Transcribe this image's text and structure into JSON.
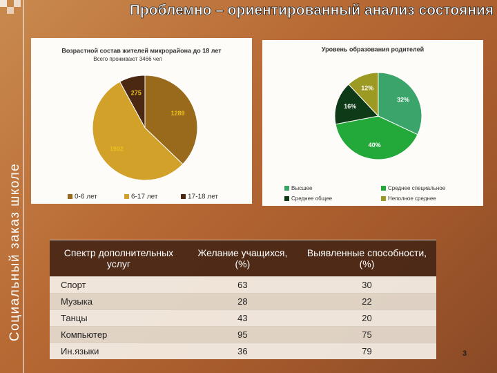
{
  "header": {
    "title": "Проблемно – ориентированный анализ состояния школы",
    "side_title": "Социальный заказ школе"
  },
  "chart_data": [
    {
      "type": "pie",
      "title": "Возрастной состав жителей микрорайона до 18 лет",
      "subtitle": "Всего проживают 3466 чел",
      "categories": [
        "0-6 лет",
        "6-17 лет",
        "17-18 лет"
      ],
      "values": [
        1289,
        1902,
        275
      ],
      "colors": [
        "#9a6a1c",
        "#d2a12a",
        "#4a2812"
      ],
      "label_color": "#e8c020"
    },
    {
      "type": "pie",
      "title": "Уровень образования родителей",
      "categories": [
        "Высшее",
        "Среднее специальное",
        "Среднее общее",
        "Неполное среднее"
      ],
      "values": [
        32,
        40,
        16,
        12
      ],
      "value_labels": [
        "32%",
        "40%",
        "16%",
        "12%"
      ],
      "colors": [
        "#3aa46a",
        "#23a83a",
        "#0e3a18",
        "#9c9a22"
      ],
      "label_color": "#ffffff"
    }
  ],
  "table": {
    "header": [
      "Спектр дополнительных услуг",
      "Желание учащихся, (%)",
      "Выявленные способности, (%)"
    ],
    "rows": [
      [
        "Спорт",
        63,
        30
      ],
      [
        "Музыка",
        28,
        22
      ],
      [
        "Танцы",
        43,
        20
      ],
      [
        "Компьютер",
        95,
        75
      ],
      [
        "Ин.языки",
        36,
        79
      ]
    ]
  },
  "page_number": "3"
}
